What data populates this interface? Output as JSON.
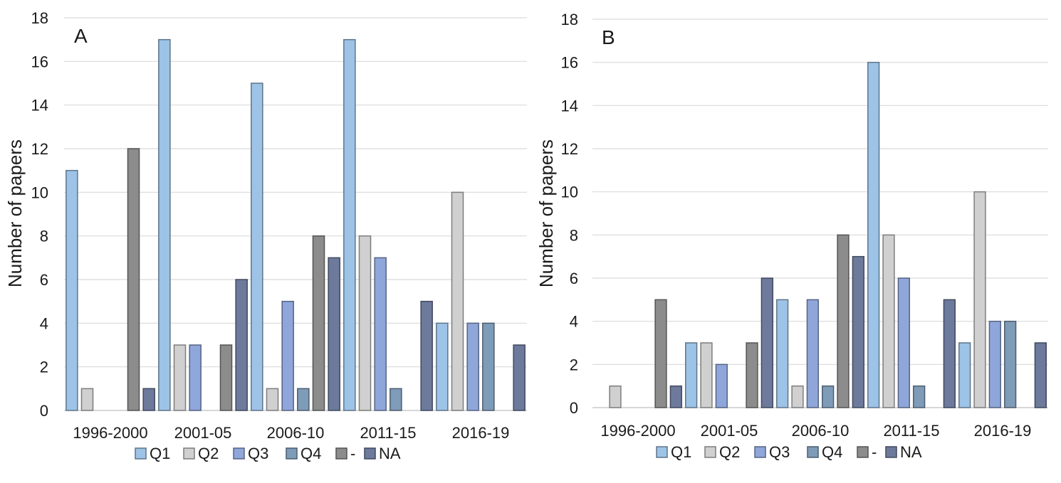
{
  "chart_data": [
    {
      "panel_label": "A",
      "type": "bar",
      "categories": [
        "1996-2000",
        "2001-05",
        "2006-10",
        "2011-15",
        "2016-19"
      ],
      "ylabel": "Number of papers",
      "ylim": [
        0,
        18
      ],
      "yticks": [
        "0",
        "2",
        "4",
        "6",
        "8",
        "10",
        "12",
        "14",
        "16",
        "18"
      ],
      "grid": true,
      "legend_position": "bottom",
      "series": [
        {
          "name": "Q1",
          "color": "#9dc3e6",
          "values": [
            11,
            17,
            15,
            17,
            4
          ]
        },
        {
          "name": "Q2",
          "color": "#d0d0d0",
          "values": [
            1,
            3,
            1,
            8,
            10
          ]
        },
        {
          "name": "Q3",
          "color": "#8fa6da",
          "values": [
            0,
            3,
            5,
            7,
            4
          ]
        },
        {
          "name": "Q4",
          "color": "#7e9bb8",
          "values": [
            0,
            0,
            1,
            1,
            4
          ]
        },
        {
          "name": "-",
          "color": "#8c8c8c",
          "values": [
            12,
            3,
            8,
            0,
            0
          ]
        },
        {
          "name": "NA",
          "color": "#6d7a9c",
          "values": [
            1,
            6,
            7,
            5,
            3
          ]
        }
      ]
    },
    {
      "panel_label": "B",
      "type": "bar",
      "categories": [
        "1996-2000",
        "2001-05",
        "2006-10",
        "2011-15",
        "2016-19"
      ],
      "ylabel": "Number of papers",
      "ylim": [
        0,
        18
      ],
      "yticks": [
        "0",
        "2",
        "4",
        "6",
        "8",
        "10",
        "12",
        "14",
        "16",
        "18"
      ],
      "grid": true,
      "legend_position": "bottom",
      "series": [
        {
          "name": "Q1",
          "color": "#9dc3e6",
          "values": [
            0,
            3,
            5,
            16,
            3
          ]
        },
        {
          "name": "Q2",
          "color": "#d0d0d0",
          "values": [
            1,
            3,
            1,
            8,
            10
          ]
        },
        {
          "name": "Q3",
          "color": "#8fa6da",
          "values": [
            0,
            2,
            5,
            6,
            4
          ]
        },
        {
          "name": "Q4",
          "color": "#7e9bb8",
          "values": [
            0,
            0,
            1,
            1,
            4
          ]
        },
        {
          "name": "-",
          "color": "#8c8c8c",
          "values": [
            5,
            3,
            8,
            0,
            0
          ]
        },
        {
          "name": "NA",
          "color": "#6d7a9c",
          "values": [
            1,
            6,
            7,
            5,
            3
          ]
        }
      ]
    }
  ]
}
